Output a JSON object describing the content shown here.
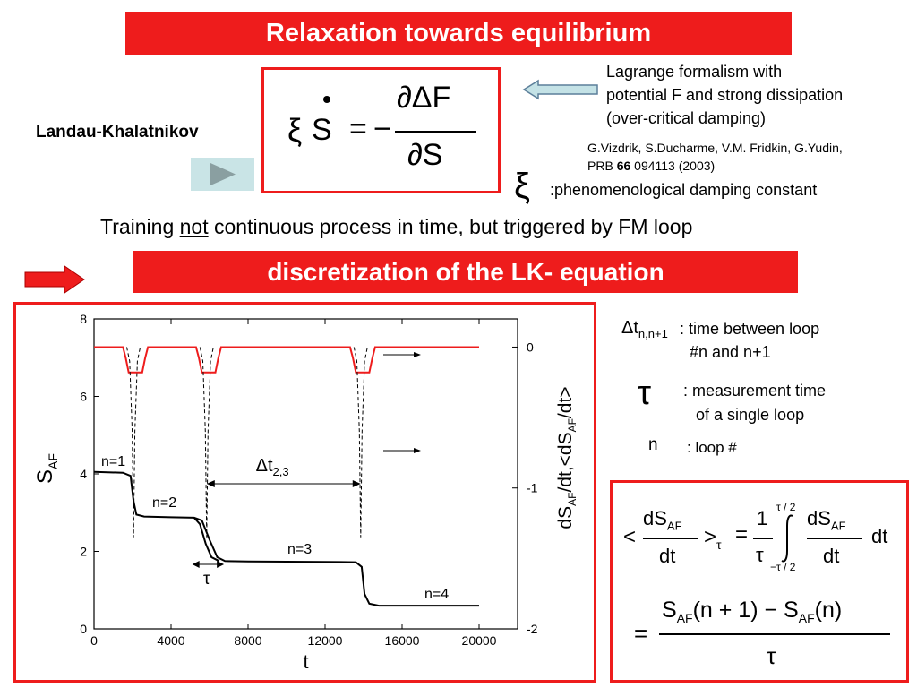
{
  "title": "Relaxation towards equilibrium",
  "subtitle": "discretization of the LK- equation",
  "landau_label": "Landau-Khalatnikov",
  "lagrange_text": [
    "Lagrange formalism with",
    "potential F and strong dissipation",
    "(over-critical damping)"
  ],
  "reference": {
    "authors": "G.Vizdrik, S.Ducharme, V.M. Fridkin, G.Yudin,",
    "journal": "PRB ",
    "volume": "66",
    "pages": " 094113 (2003)"
  },
  "damping": {
    "symbol": "ξ",
    "text": ":phenomenological damping constant"
  },
  "training": {
    "before": "Training ",
    "underlined": "not",
    "after": " continuous process in time, but triggered by FM loop"
  },
  "equation_lk": {
    "xi": "ξ",
    "S": "S",
    "eq": "=",
    "minus": "−",
    "num": "∂ΔF",
    "den": "∂S"
  },
  "legend_defs": {
    "dt_symbol": "Δt",
    "dt_sub": "n,n+1",
    "dt_text1": ": time between loop",
    "dt_text2": "#n and n+1",
    "tau_symbol": "τ",
    "tau_text1": ": measurement time",
    "tau_text2": "of a single loop",
    "n_symbol": "n",
    "n_text": ": loop #"
  },
  "avg_eq": {
    "lt": "<",
    "gt": ">",
    "tau_sub": "τ",
    "eq": "=",
    "one": "1",
    "tau": "τ",
    "dS": "dS",
    "AF": "AF",
    "dt": "dt",
    "up": "τ / 2",
    "low": "−τ / 2",
    "line2_eq": "=",
    "S": "S",
    "n1": "(n + 1)",
    "minus": "−",
    "n": "(n)"
  },
  "chart_data": {
    "type": "line",
    "xlabel": "t",
    "ylabel": "S",
    "ylabel_sub": "AF",
    "y2label": "dS",
    "y2label_sub1": "AF",
    "y2label_mid": "/dt,<dS",
    "y2label_sub2": "AF",
    "y2label_end": "/dt>",
    "xlim": [
      0,
      22000
    ],
    "ylim": [
      0,
      8
    ],
    "y2lim": [
      -2,
      0.2
    ],
    "xticks": [
      0,
      4000,
      8000,
      12000,
      16000,
      20000
    ],
    "yticks": [
      0,
      2,
      4,
      6,
      8
    ],
    "y2ticks": [
      0,
      -1,
      -2
    ],
    "series": [
      {
        "color": "#000000",
        "style": "solid",
        "points": [
          [
            0,
            4.05
          ],
          [
            1500,
            4.03
          ],
          [
            1900,
            3.95
          ],
          [
            2050,
            3.3
          ],
          [
            2200,
            2.95
          ],
          [
            2600,
            2.9
          ],
          [
            4000,
            2.88
          ],
          [
            5200,
            2.87
          ],
          [
            5600,
            2.8
          ],
          [
            6000,
            2.3
          ],
          [
            6400,
            1.85
          ],
          [
            6800,
            1.75
          ],
          [
            8000,
            1.74
          ],
          [
            12000,
            1.73
          ],
          [
            13600,
            1.72
          ],
          [
            13900,
            1.6
          ],
          [
            14050,
            0.9
          ],
          [
            14300,
            0.65
          ],
          [
            14800,
            0.6
          ],
          [
            20000,
            0.6
          ]
        ]
      },
      {
        "color": "#000000",
        "style": "solid",
        "points": [
          [
            5200,
            2.87
          ],
          [
            5500,
            2.7
          ],
          [
            5800,
            2.2
          ],
          [
            6100,
            1.85
          ],
          [
            6500,
            1.75
          ]
        ]
      },
      {
        "color": "#ee1c1c",
        "style": "solid",
        "points": [
          [
            0,
            0
          ],
          [
            1500,
            0
          ],
          [
            1650,
            -0.08
          ],
          [
            1800,
            -0.18
          ],
          [
            2500,
            -0.18
          ],
          [
            2650,
            -0.08
          ],
          [
            2800,
            0
          ],
          [
            5300,
            0
          ],
          [
            5450,
            -0.08
          ],
          [
            5600,
            -0.18
          ],
          [
            6300,
            -0.18
          ],
          [
            6450,
            -0.08
          ],
          [
            6600,
            0
          ],
          [
            13300,
            0
          ],
          [
            13450,
            -0.08
          ],
          [
            13600,
            -0.18
          ],
          [
            14300,
            -0.18
          ],
          [
            14450,
            -0.08
          ],
          [
            14600,
            0
          ],
          [
            20000,
            0
          ]
        ]
      },
      {
        "color": "#000000",
        "style": "dashed",
        "points": [
          [
            1700,
            0
          ],
          [
            1850,
            -0.1
          ],
          [
            1980,
            -0.6
          ],
          [
            2050,
            -1.35
          ],
          [
            2120,
            -0.6
          ],
          [
            2250,
            -0.1
          ],
          [
            2400,
            0
          ]
        ]
      },
      {
        "color": "#000000",
        "style": "dashed",
        "points": [
          [
            5500,
            0
          ],
          [
            5650,
            -0.1
          ],
          [
            5780,
            -0.6
          ],
          [
            5850,
            -1.35
          ],
          [
            5920,
            -0.6
          ],
          [
            6050,
            -0.1
          ],
          [
            6200,
            0
          ]
        ]
      },
      {
        "color": "#000000",
        "style": "dashed",
        "points": [
          [
            13500,
            0
          ],
          [
            13650,
            -0.1
          ],
          [
            13780,
            -0.6
          ],
          [
            13850,
            -1.35
          ],
          [
            13920,
            -0.6
          ],
          [
            14050,
            -0.1
          ],
          [
            14200,
            0
          ]
        ]
      }
    ],
    "annotations": {
      "n1": "n=1",
      "n2": "n=2",
      "n3": "n=3",
      "n4": "n=4",
      "dt_label": "Δt",
      "dt_sub": "2,3",
      "tau_label": "τ"
    }
  }
}
